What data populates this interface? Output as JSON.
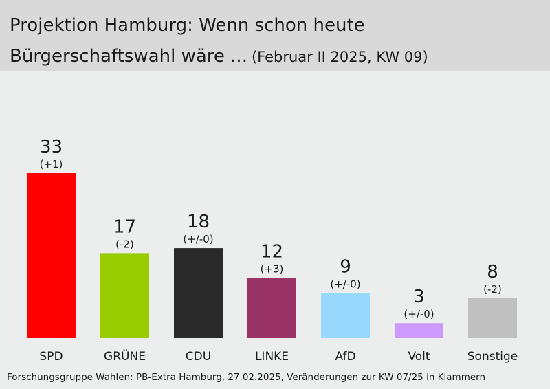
{
  "header": {
    "title_line1": "Projektion Hamburg: Wenn schon heute",
    "title_line2": "Bürgerschaftswahl wäre ...",
    "subtitle": "(Februar II 2025, KW 09)"
  },
  "source": "Forschungsgruppe Wahlen: PB-Extra Hamburg, 27.02.2025, Veränderungen zur KW 07/25 in Klammern",
  "chart_data": {
    "type": "bar",
    "title": "Projektion Hamburg: Wenn schon heute Bürgerschaftswahl wäre ...",
    "subtitle": "(Februar II 2025, KW 09)",
    "categories": [
      "SPD",
      "GRÜNE",
      "CDU",
      "LINKE",
      "AfD",
      "Volt",
      "Sonstige"
    ],
    "values": [
      33,
      17,
      18,
      12,
      9,
      3,
      8
    ],
    "changes": [
      "(+1)",
      "(-2)",
      "(+/-0)",
      "(+3)",
      "(+/-0)",
      "(+/-0)",
      "(-2)"
    ],
    "colors": [
      "#ff0000",
      "#99cc00",
      "#2a2a2a",
      "#993366",
      "#99d9ff",
      "#cc99ff",
      "#c0c0c0"
    ],
    "xlabel": "",
    "ylabel": "",
    "ylim": [
      0,
      33
    ],
    "grid": false,
    "legend": "none"
  }
}
